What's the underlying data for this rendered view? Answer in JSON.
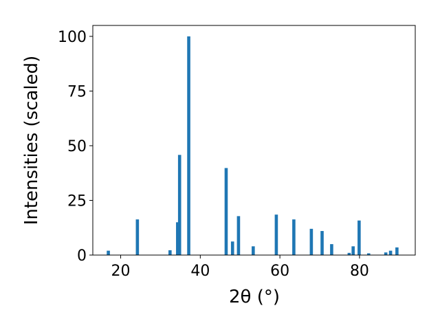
{
  "chart_data": {
    "type": "bar",
    "title": "",
    "xlabel": "2θ (°)",
    "ylabel": "Intensities (scaled)",
    "xlim": [
      13,
      94
    ],
    "ylim": [
      0,
      105
    ],
    "xticks": [
      20,
      40,
      60,
      80
    ],
    "yticks": [
      0,
      25,
      50,
      75,
      100
    ],
    "bar_color": "#1f77b4",
    "grid": false,
    "legend": "none",
    "bars": [
      {
        "x": 16.9,
        "y": 2
      },
      {
        "x": 24.2,
        "y": 16.3
      },
      {
        "x": 32.4,
        "y": 2.2
      },
      {
        "x": 34.3,
        "y": 15
      },
      {
        "x": 34.8,
        "y": 45.8
      },
      {
        "x": 37.1,
        "y": 100
      },
      {
        "x": 46.5,
        "y": 39.8
      },
      {
        "x": 48.1,
        "y": 6.2
      },
      {
        "x": 49.6,
        "y": 17.8
      },
      {
        "x": 53.3,
        "y": 4
      },
      {
        "x": 59.1,
        "y": 18.5
      },
      {
        "x": 63.5,
        "y": 16.3
      },
      {
        "x": 67.9,
        "y": 12
      },
      {
        "x": 70.6,
        "y": 11
      },
      {
        "x": 73.0,
        "y": 5
      },
      {
        "x": 77.4,
        "y": 1
      },
      {
        "x": 78.4,
        "y": 4
      },
      {
        "x": 79.9,
        "y": 15.8
      },
      {
        "x": 82.3,
        "y": 0.8
      },
      {
        "x": 86.6,
        "y": 1.2
      },
      {
        "x": 87.8,
        "y": 2
      },
      {
        "x": 89.4,
        "y": 3.5
      }
    ]
  }
}
